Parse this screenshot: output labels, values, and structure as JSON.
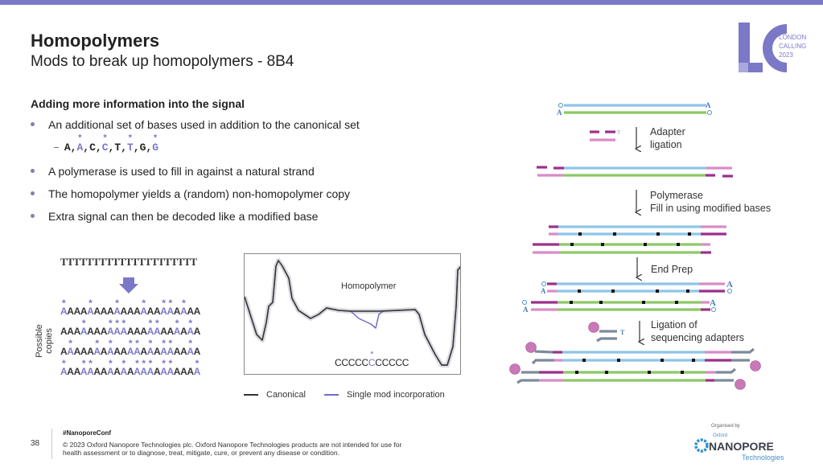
{
  "slide": {
    "title": "Homopolymers",
    "subtitle": "Mods to break up homopolymers - 8B4",
    "section_heading": "Adding more information into the signal",
    "bullets": [
      "An additional set of bases used in addition to the canonical set",
      "A polymerase is used to fill in against a natural strand",
      "The homopolymer yields a (random) non-homopolymer copy",
      "Extra signal can then be decoded like a modified base"
    ],
    "base_set": {
      "dash": "–",
      "bases": [
        "A",
        "A",
        "C",
        "C",
        "T",
        "T",
        "G",
        "G"
      ],
      "modified": [
        false,
        true,
        false,
        true,
        false,
        true,
        false,
        true
      ],
      "separator": ","
    }
  },
  "homopolymer_figure": {
    "template": "TTTTTTTTTTTTTTTTTTTTT",
    "copies_label": "Possible copies",
    "copy_base": "A",
    "copy_length": 21,
    "copies_mod_positions": [
      [
        0,
        4,
        8,
        12,
        15,
        16,
        18
      ],
      [
        3,
        7,
        8,
        9,
        13,
        14,
        17,
        19
      ],
      [
        1,
        5,
        7,
        10,
        11,
        13,
        15,
        16,
        19
      ],
      [
        0,
        3,
        4,
        7,
        9,
        11,
        12,
        13,
        15,
        16,
        20
      ]
    ],
    "mod_color": "#7b78c8"
  },
  "signal_chart": {
    "annotation": "Homopolymer",
    "sequence": "CCCCCCCCCCC",
    "modified_index": 5,
    "legend": [
      {
        "label": "Canonical",
        "color": "#333333"
      },
      {
        "label": "Single mod incorporation",
        "color": "#6f6cc8"
      }
    ]
  },
  "workflow": {
    "steps": [
      {
        "lines": [
          "Adapter",
          "ligation"
        ]
      },
      {
        "lines": [
          "Polymerase",
          "Fill in using modified bases"
        ]
      },
      {
        "lines": [
          "End Prep"
        ]
      },
      {
        "lines": [
          "Ligation of",
          "sequencing adapters"
        ]
      }
    ],
    "overhang_A": "A",
    "overhang_T": "T",
    "colors": {
      "top_strand": "#8ec5e8",
      "bottom_strand": "#8cc866",
      "adapter_dark": "#9b2f8a",
      "adapter_light": "#d98bc8",
      "motor": "#c978b8",
      "tether": "#7d8a99"
    }
  },
  "footer": {
    "page_number": "38",
    "hashtag": "#NanoporeConf",
    "copyright": "© 2023 Oxford Nanopore Technologies plc. Oxford Nanopore Technologies products are not intended for use for health assessment or to diagnose, treat, mitigate, cure, or prevent any disease or condition.",
    "organised_by": "Organised by",
    "org_logo_small": "Oxford",
    "org_logo": "NANOPORE",
    "org_logo_sub": "Technologies"
  },
  "event_logo": {
    "letters": "LC",
    "line1": "LONDON",
    "line2": "CALLING",
    "line3": "2023",
    "color": "#7b78c8"
  }
}
